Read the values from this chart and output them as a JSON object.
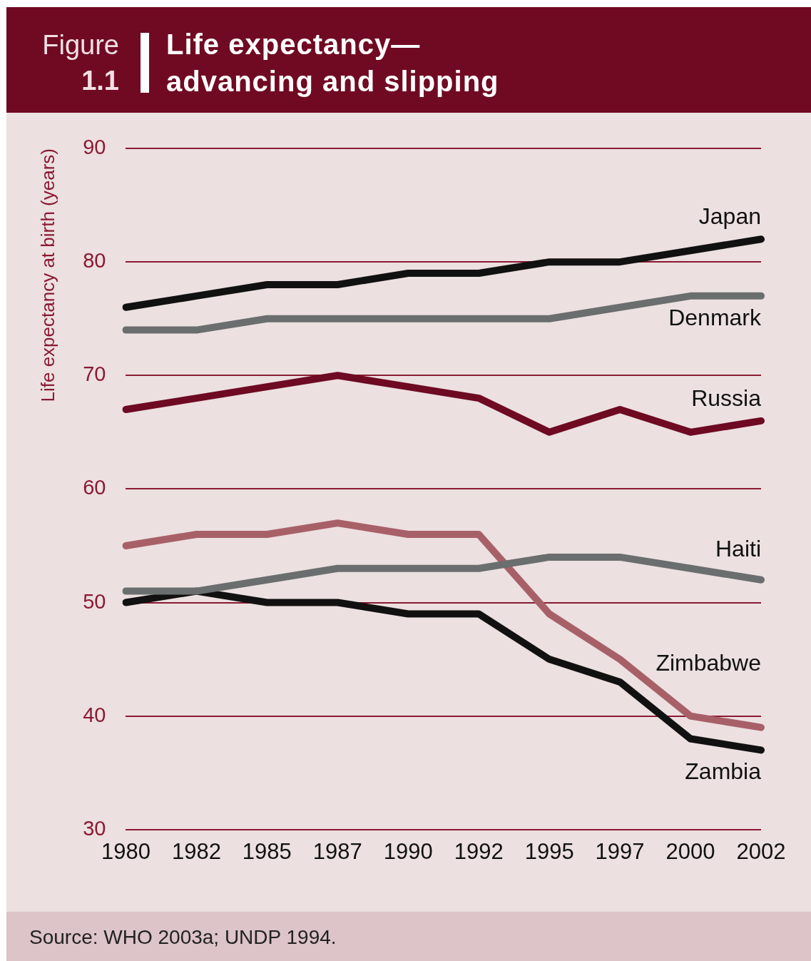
{
  "chart_data": {
    "type": "line",
    "title": "Life expectancy—advancing and slipping",
    "ylabel": "Life expectancy at birth (years)",
    "annotations": [
      "Figure",
      "1.1",
      "Source: WHO 2003a; UNDP 1994."
    ],
    "categories": [
      "1980",
      "1982",
      "1985",
      "1987",
      "1990",
      "1992",
      "1995",
      "1997",
      "2000",
      "2002"
    ],
    "series": [
      {
        "name": "Japan",
        "color": "#111111",
        "values": [
          76,
          77,
          78,
          78,
          79,
          79,
          80,
          80,
          81,
          82
        ]
      },
      {
        "name": "Denmark",
        "color": "#6b6e6e",
        "values": [
          74,
          74,
          75,
          75,
          75,
          75,
          75,
          76,
          77,
          77
        ]
      },
      {
        "name": "Russia",
        "color": "#6e0a22",
        "values": [
          67,
          68,
          69,
          70,
          69,
          68,
          65,
          67,
          65,
          66
        ]
      },
      {
        "name": "Haiti",
        "color": "#6b6e6e",
        "values": [
          51,
          51,
          52,
          53,
          53,
          53,
          54,
          54,
          53,
          52
        ]
      },
      {
        "name": "Zimbabwe",
        "color": "#a86068",
        "values": [
          55,
          56,
          56,
          57,
          56,
          56,
          49,
          45,
          40,
          39
        ]
      },
      {
        "name": "Zambia",
        "color": "#111111",
        "values": [
          50,
          51,
          50,
          50,
          49,
          49,
          45,
          43,
          38,
          37
        ]
      }
    ],
    "ylim": [
      30,
      90
    ],
    "yticks": [
      30,
      40,
      50,
      60,
      70,
      80,
      90
    ],
    "grid": "y",
    "marker": "none",
    "line_style": "solid"
  }
}
